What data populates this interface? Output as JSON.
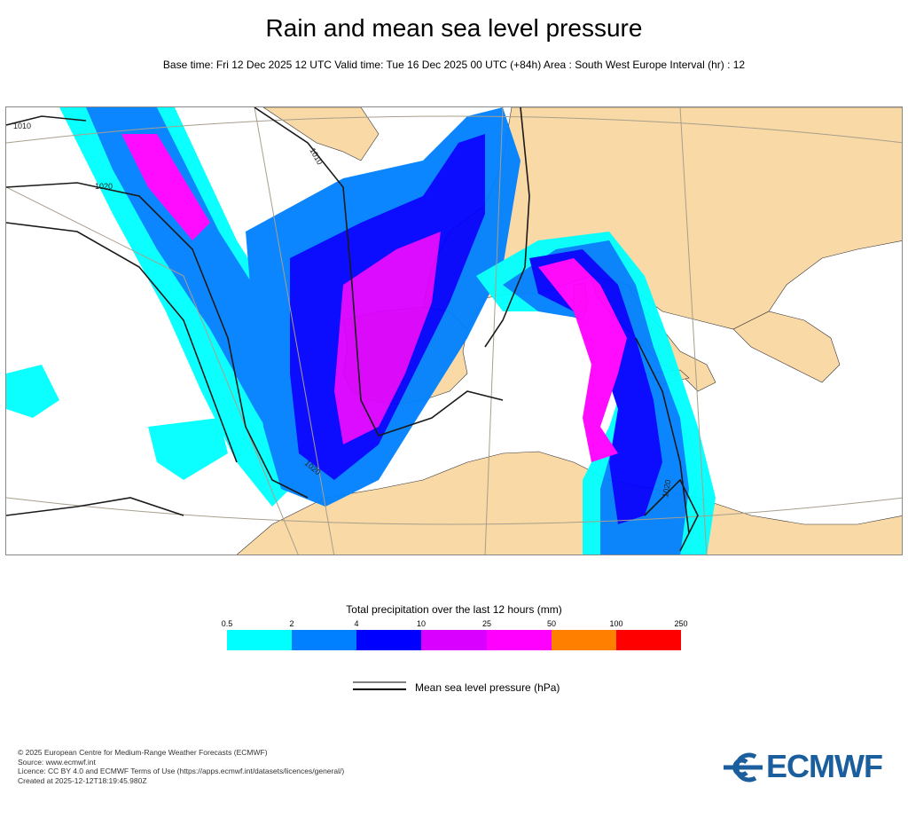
{
  "header": {
    "title": "Rain and mean sea level pressure",
    "subtitle": "Base time: Fri 12 Dec 2025 12 UTC Valid time: Tue 16 Dec 2025 00 UTC (+84h) Area : South West Europe Interval (hr) : 12"
  },
  "map": {
    "isobar_labels": [
      "1010",
      "1010",
      "1020",
      "1020",
      "1020"
    ],
    "colors": {
      "land": "#f9d9a6",
      "sea": "#ffffff",
      "isobar": "#1a1a1a",
      "grid": "#a89f8c"
    }
  },
  "legend": {
    "title": "Total precipitation over the last 12 hours (mm)",
    "ticks": [
      "0.5",
      "2",
      "4",
      "10",
      "25",
      "50",
      "100",
      "250"
    ],
    "colors": [
      "#00ffff",
      "#0080ff",
      "#0000ff",
      "#da00ff",
      "#ff00ff",
      "#ff8000",
      "#ff0000"
    ]
  },
  "pressure_legend": {
    "label": "Mean sea level pressure (hPa)"
  },
  "footer": {
    "lines": [
      "© 2025 European Centre for Medium-Range Weather Forecasts (ECMWF)",
      "Source: www.ecmwf.int",
      "Licence: CC BY 4.0 and ECMWF Terms of Use (https://apps.ecmwf.int/datasets/licences/general/)",
      "Created at 2025-12-12T18:19:45.980Z"
    ]
  },
  "logo": {
    "text": "ECMWF",
    "color": "#1b5e9e"
  }
}
